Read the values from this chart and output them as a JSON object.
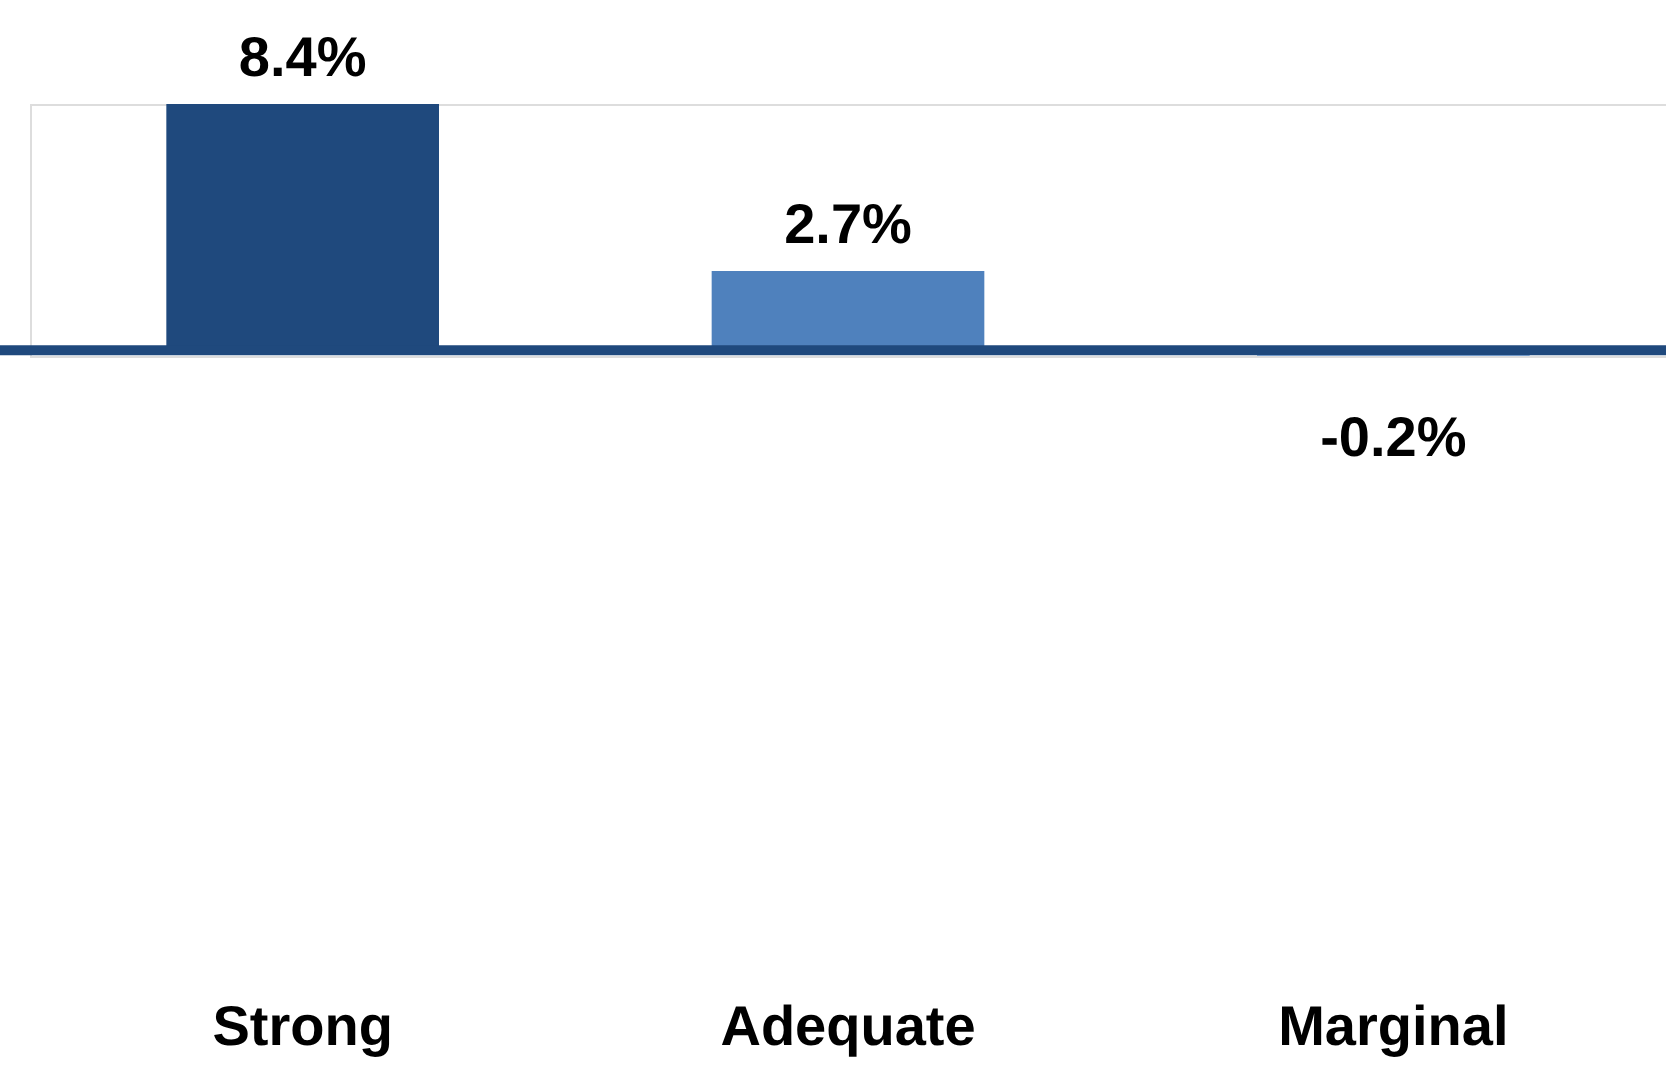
{
  "chart_data": {
    "type": "bar",
    "categories": [
      "Strong",
      "Adequate",
      "Marginal"
    ],
    "values": [
      8.4,
      2.7,
      -0.2
    ],
    "colors": [
      "#1f497d",
      "#4f81bd",
      "#8eb4e3"
    ],
    "value_labels": [
      "8.4%",
      "2.7%",
      "-0.2%"
    ],
    "ref_lines": [
      {
        "axis": "y",
        "value": 0,
        "color": "#1f497d"
      }
    ]
  }
}
